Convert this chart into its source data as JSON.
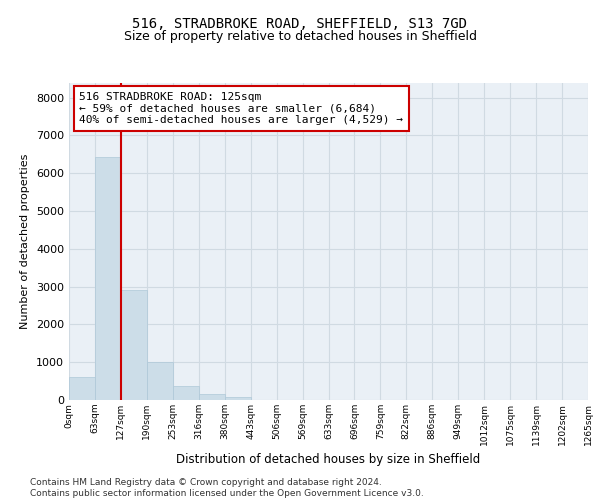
{
  "title1": "516, STRADBROKE ROAD, SHEFFIELD, S13 7GD",
  "title2": "Size of property relative to detached houses in Sheffield",
  "xlabel": "Distribution of detached houses by size in Sheffield",
  "ylabel": "Number of detached properties",
  "bar_color": "#ccdde8",
  "bar_edge_color": "#aec8d8",
  "bin_labels": [
    "0sqm",
    "63sqm",
    "127sqm",
    "190sqm",
    "253sqm",
    "316sqm",
    "380sqm",
    "443sqm",
    "506sqm",
    "569sqm",
    "633sqm",
    "696sqm",
    "759sqm",
    "822sqm",
    "886sqm",
    "949sqm",
    "1012sqm",
    "1075sqm",
    "1139sqm",
    "1202sqm",
    "1265sqm"
  ],
  "bar_heights": [
    620,
    6440,
    2920,
    1000,
    380,
    160,
    90,
    0,
    0,
    0,
    0,
    0,
    0,
    0,
    0,
    0,
    0,
    0,
    0,
    0
  ],
  "vline_x": 2,
  "vline_color": "#cc0000",
  "annotation_text": "516 STRADBROKE ROAD: 125sqm\n← 59% of detached houses are smaller (6,684)\n40% of semi-detached houses are larger (4,529) →",
  "annotation_box_color": "#ffffff",
  "annotation_box_edge_color": "#cc0000",
  "grid_color": "#d0dae2",
  "bg_color": "#eaf0f6",
  "footer_text": "Contains HM Land Registry data © Crown copyright and database right 2024.\nContains public sector information licensed under the Open Government Licence v3.0.",
  "ylim": [
    0,
    8400
  ],
  "yticks": [
    0,
    1000,
    2000,
    3000,
    4000,
    5000,
    6000,
    7000,
    8000
  ],
  "n_bins": 20
}
